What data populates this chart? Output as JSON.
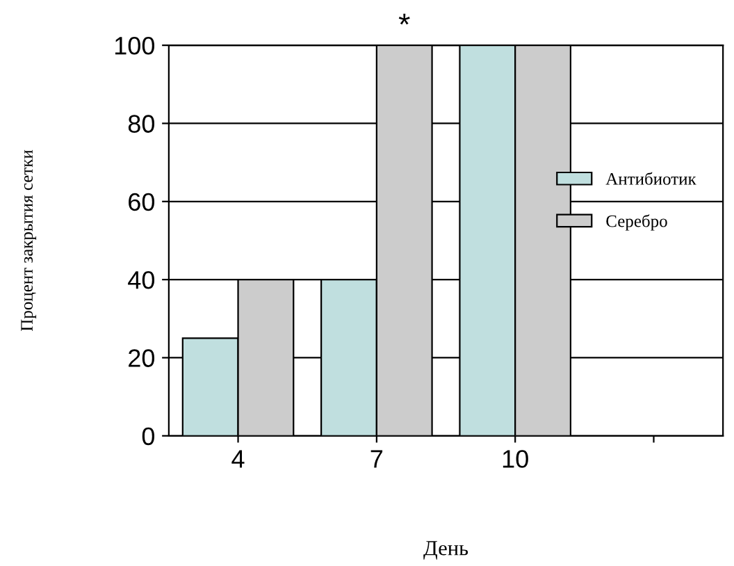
{
  "chart_data": {
    "type": "bar",
    "xlabel": "День",
    "ylabel": "Процент закрытия сетки",
    "categories": [
      "4",
      "7",
      "10",
      null
    ],
    "series": [
      {
        "name": "Антибиотик",
        "color": "#c0dfdf",
        "values": [
          25,
          40,
          100,
          null
        ]
      },
      {
        "name": "Серебро",
        "color": "#cccccc",
        "values": [
          40,
          100,
          100,
          null
        ]
      }
    ],
    "annotations": [
      {
        "text": "*",
        "x": "7",
        "y": 100
      }
    ],
    "ylim": [
      0,
      100
    ],
    "yticks": [
      0,
      20,
      40,
      60,
      80,
      100
    ],
    "grid": "y",
    "legend": "right"
  }
}
